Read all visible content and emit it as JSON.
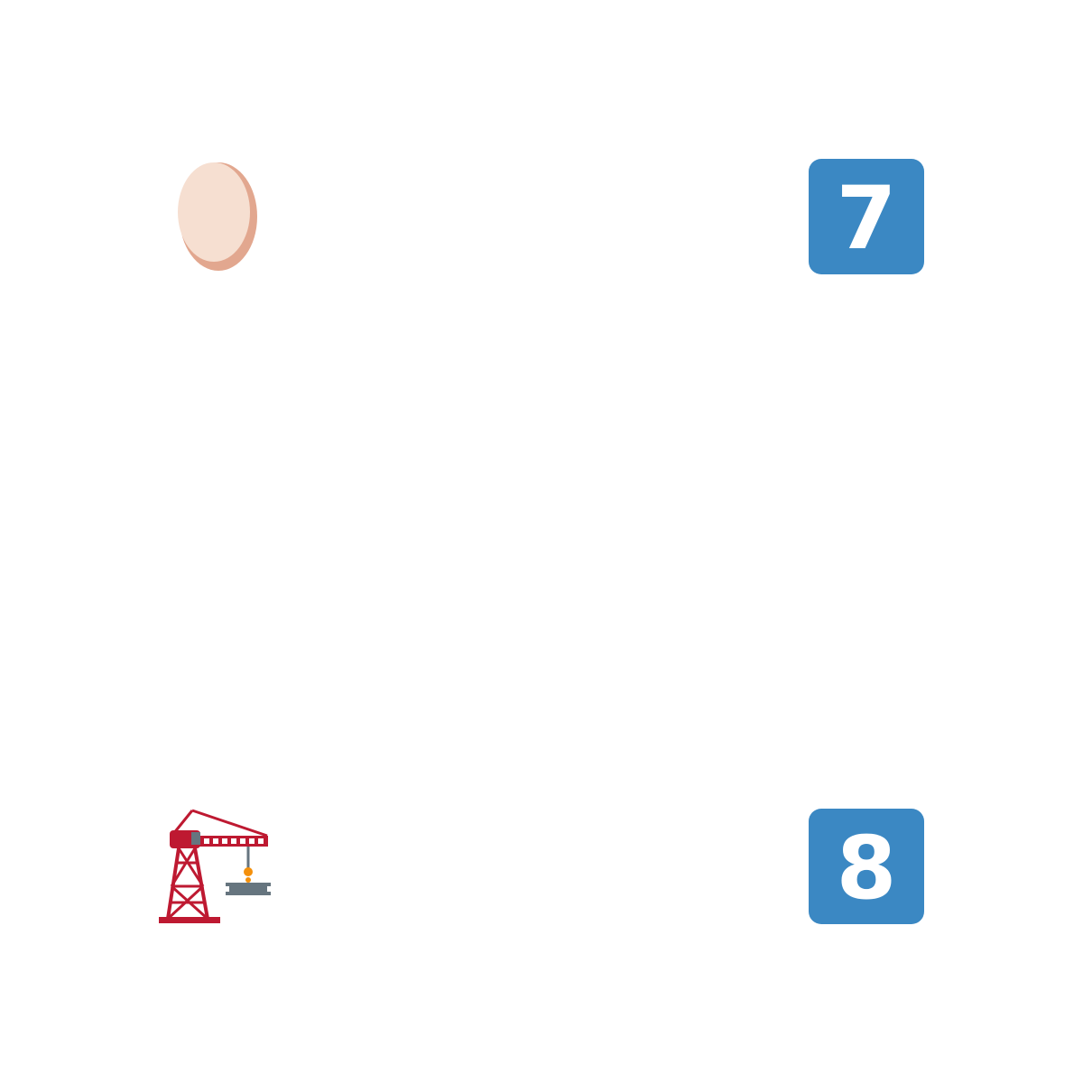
{
  "icons": {
    "top_left": "egg-icon",
    "top_right": "keycap-digit-seven-icon",
    "bottom_left": "building-construction-crane-icon",
    "bottom_right": "keycap-digit-eight-icon"
  },
  "keycaps": {
    "seven": "7",
    "eight": "8"
  },
  "colors": {
    "background": "#ffffff",
    "keycap_blue": "#3b88c3",
    "keycap_text": "#ffffff",
    "egg_light": "#f6dfd1",
    "egg_shadow": "#e2a78f",
    "crane_red": "#be1931",
    "crane_gray": "#66757f",
    "crane_orange": "#f4900c"
  }
}
